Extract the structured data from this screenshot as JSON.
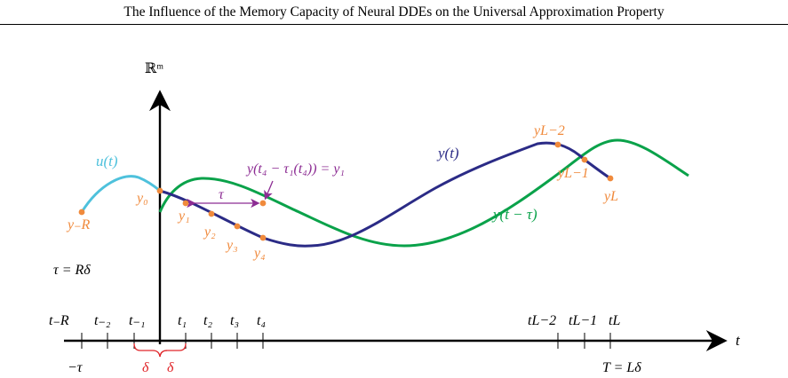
{
  "header": {
    "title": "The Influence of the Memory Capacity of Neural DDEs on the Universal Approximation Property"
  },
  "colors": {
    "input_curve": "#4ec1dc",
    "solution_curve": "#2b2b86",
    "delayed_curve": "#0aa24a",
    "points": "#f08a3c",
    "annotation": "#8c2c93",
    "delta": "#e0262a",
    "axis": "#000000"
  },
  "axis_labels": {
    "vertical": "ℝᵐ",
    "horizontal": "t"
  },
  "curve_labels": {
    "u": "u(t)",
    "y": "y(t)",
    "y_delayed": "y(t − τ)"
  },
  "annotations": {
    "tau_arrow": "τ",
    "delay_equation": "y(t₄ − τ₁(t₄)) = y₁",
    "tau_relation": "τ = Rδ",
    "end_time": "T = Lδ",
    "minus_tau": "−τ",
    "delta_left": "δ",
    "delta_right": "δ"
  },
  "point_labels": {
    "y_minus_R": "y₋R",
    "y0": "y₀",
    "y1": "y₁",
    "y2": "y₂",
    "y3": "y₃",
    "y4": "y₄",
    "y_L_minus_2": "yL−2",
    "y_L_minus_1": "yL−1",
    "y_L": "yL"
  },
  "tick_labels": {
    "t_minus_R": "t₋R",
    "t_minus_2": "t₋₂",
    "t_minus_1": "t₋₁",
    "t1": "t₁",
    "t2": "t₂",
    "t3": "t₃",
    "t4": "t₄",
    "t_L_minus_2": "tL−2",
    "t_L_minus_1": "tL−1",
    "t_L": "tL"
  }
}
